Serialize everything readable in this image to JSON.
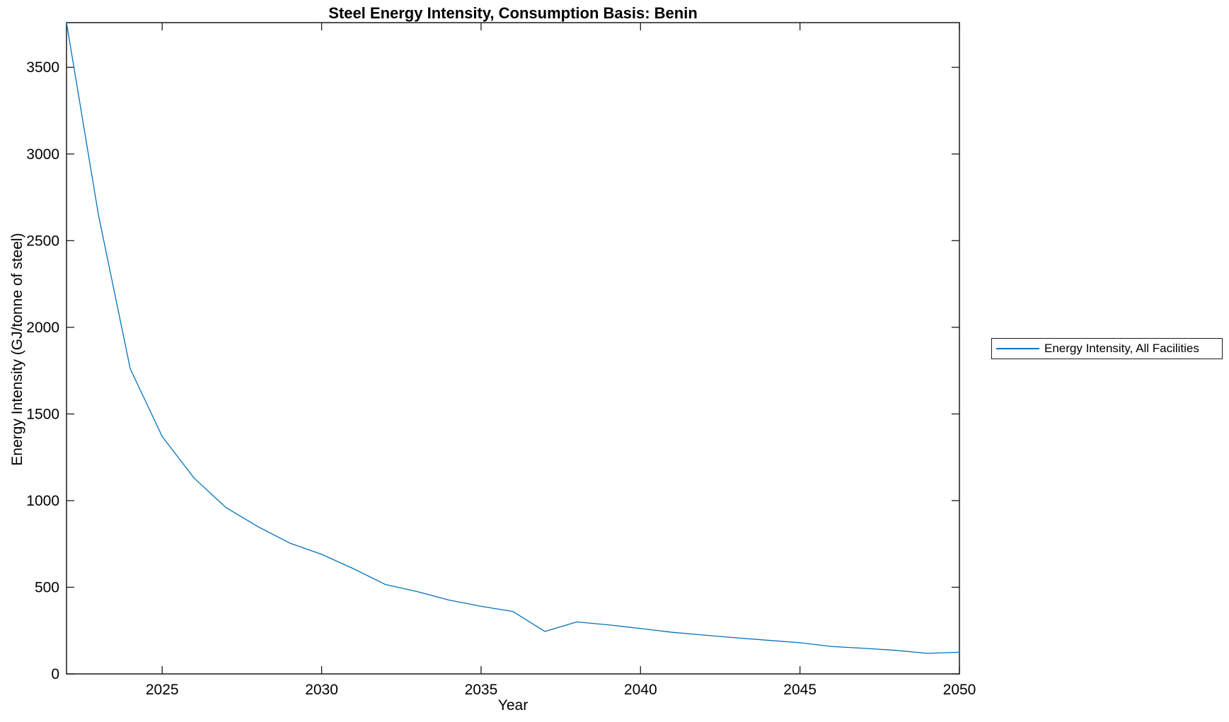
{
  "chart_data": {
    "type": "line",
    "title": "Steel Energy Intensity, Consumption Basis: Benin",
    "xlabel": "Year",
    "ylabel": "Energy Intensity (GJ/tonne of steel)",
    "xlim": [
      2022,
      2050
    ],
    "ylim": [
      0,
      3758
    ],
    "xticks": [
      2025,
      2030,
      2035,
      2040,
      2045,
      2050
    ],
    "yticks": [
      0,
      500,
      1000,
      1500,
      2000,
      2500,
      3000,
      3500
    ],
    "grid": false,
    "box": true,
    "legend": {
      "position": "outside-right",
      "entries": [
        {
          "label": "Energy Intensity, All Facilities",
          "color": "#0072BD"
        }
      ]
    },
    "series": [
      {
        "name": "Energy Intensity, All Facilities",
        "color": "#0072BD",
        "x": [
          2022,
          2023,
          2024,
          2025,
          2026,
          2027,
          2028,
          2029,
          2030,
          2031,
          2032,
          2033,
          2034,
          2035,
          2036,
          2037,
          2038,
          2039,
          2040,
          2041,
          2042,
          2043,
          2044,
          2045,
          2046,
          2047,
          2048,
          2049,
          2050
        ],
        "y": [
          3758,
          2650,
          1760,
          1370,
          1130,
          960,
          850,
          755,
          690,
          607,
          516,
          475,
          426,
          390,
          360,
          245,
          300,
          283,
          262,
          240,
          224,
          208,
          194,
          180,
          158,
          148,
          136,
          119,
          125
        ]
      }
    ],
    "axis_color": "#1a1a1a",
    "text_color": "#000000"
  }
}
